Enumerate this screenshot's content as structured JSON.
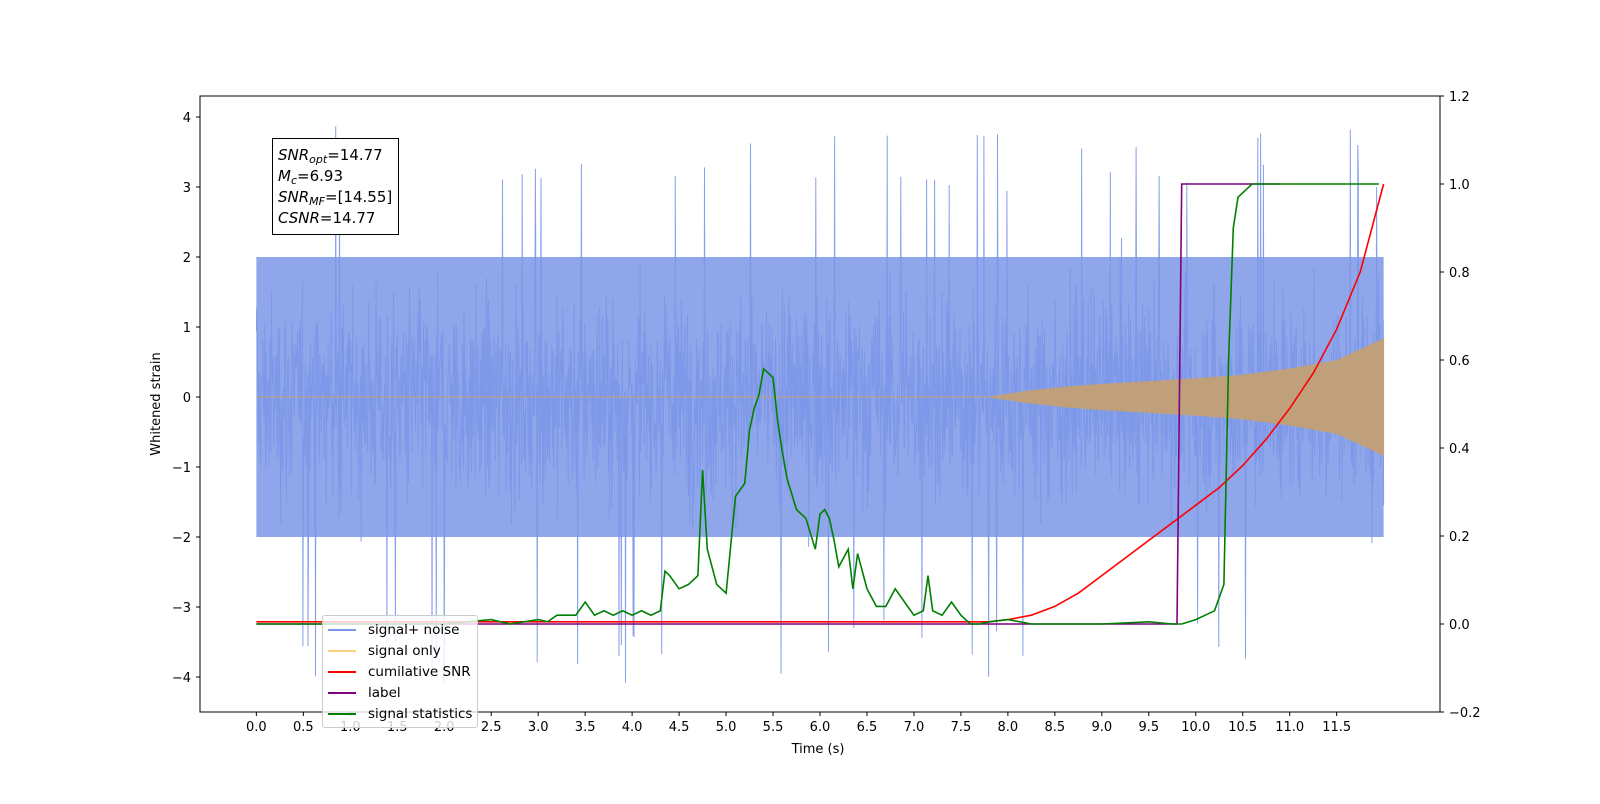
{
  "chart_data": {
    "type": "line",
    "xlabel": "Time (s)",
    "ylabel": "Whitened strain",
    "xlim": [
      -0.6,
      12.6
    ],
    "ylim": [
      -4.5,
      4.3
    ],
    "y2lim": [
      -0.2,
      1.2
    ],
    "x_ticks": [
      "0.0",
      "0.5",
      "1.0",
      "1.5",
      "2.0",
      "2.5",
      "3.0",
      "3.5",
      "4.0",
      "4.5",
      "5.0",
      "5.5",
      "6.0",
      "6.5",
      "7.0",
      "7.5",
      "8.0",
      "8.5",
      "9.0",
      "9.5",
      "10.0",
      "10.5",
      "11.0",
      "11.5"
    ],
    "y_ticks": [
      "4",
      "3",
      "2",
      "1",
      "0",
      "−1",
      "−2",
      "−3",
      "−4"
    ],
    "y2_ticks": [
      "1.2",
      "1.0",
      "0.8",
      "0.6",
      "0.4",
      "0.2",
      "0.0",
      "−0.2"
    ],
    "grid": false,
    "legend_position": "lower-left",
    "annotation": {
      "snr_opt": "=14.77",
      "mc": "=6.93",
      "snr_mf": "=[14.55]",
      "csnr": "=14.77"
    },
    "series": [
      {
        "name": "signal+ noise",
        "color": "#7b96e8",
        "axis": "left",
        "noise_band": [
          -2.0,
          2.0
        ],
        "peak_max": 3.9,
        "peak_min": -4.1
      },
      {
        "name": "signal only",
        "color": "#ffa64d",
        "axis": "left",
        "envelope": {
          "x": [
            0.0,
            7.8,
            8.2,
            8.6,
            9.0,
            9.5,
            10.0,
            10.5,
            11.0,
            11.5,
            12.0
          ],
          "amp": [
            0.0,
            0.0,
            0.08,
            0.14,
            0.18,
            0.22,
            0.26,
            0.31,
            0.4,
            0.52,
            0.83
          ]
        }
      },
      {
        "name": "cumilative SNR",
        "color": "#ff0000",
        "axis": "right",
        "x": [
          0.0,
          7.8,
          8.0,
          8.25,
          8.5,
          8.75,
          9.0,
          9.25,
          9.5,
          9.75,
          10.0,
          10.25,
          10.5,
          10.75,
          11.0,
          11.25,
          11.5,
          11.75,
          12.0
        ],
        "y": [
          0.005,
          0.005,
          0.01,
          0.02,
          0.04,
          0.07,
          0.11,
          0.15,
          0.19,
          0.23,
          0.27,
          0.31,
          0.36,
          0.42,
          0.49,
          0.57,
          0.67,
          0.8,
          1.0
        ]
      },
      {
        "name": "label",
        "color": "#800080",
        "axis": "right",
        "x": [
          0.0,
          9.8,
          9.85,
          10.9
        ],
        "y": [
          0.0,
          0.0,
          1.0,
          1.0
        ]
      },
      {
        "name": "signal statistics",
        "color": "#008000",
        "axis": "right",
        "x": [
          0.0,
          0.5,
          1.0,
          1.5,
          2.0,
          2.5,
          2.7,
          3.0,
          3.1,
          3.2,
          3.4,
          3.5,
          3.6,
          3.7,
          3.8,
          3.9,
          4.0,
          4.1,
          4.2,
          4.3,
          4.35,
          4.4,
          4.5,
          4.6,
          4.7,
          4.75,
          4.8,
          4.85,
          4.9,
          5.0,
          5.1,
          5.2,
          5.25,
          5.3,
          5.35,
          5.4,
          5.5,
          5.55,
          5.6,
          5.65,
          5.75,
          5.85,
          5.95,
          6.0,
          6.05,
          6.1,
          6.15,
          6.2,
          6.3,
          6.35,
          6.4,
          6.5,
          6.6,
          6.7,
          6.8,
          6.9,
          7.0,
          7.1,
          7.15,
          7.2,
          7.3,
          7.4,
          7.5,
          7.6,
          7.7,
          7.8,
          8.0,
          8.25,
          8.5,
          9.0,
          9.5,
          9.75,
          9.85,
          10.0,
          10.1,
          10.2,
          10.3,
          10.35,
          10.4,
          10.45,
          10.5,
          10.55,
          10.6,
          10.75,
          11.0,
          11.5,
          11.95
        ],
        "y": [
          0.0,
          0.0,
          0.0,
          0.0,
          0.0,
          0.01,
          0.0,
          0.01,
          0.005,
          0.02,
          0.02,
          0.05,
          0.02,
          0.03,
          0.02,
          0.03,
          0.02,
          0.03,
          0.02,
          0.03,
          0.12,
          0.11,
          0.08,
          0.09,
          0.11,
          0.35,
          0.17,
          0.13,
          0.09,
          0.07,
          0.29,
          0.32,
          0.44,
          0.49,
          0.52,
          0.58,
          0.56,
          0.46,
          0.39,
          0.33,
          0.26,
          0.24,
          0.17,
          0.25,
          0.26,
          0.24,
          0.19,
          0.13,
          0.17,
          0.08,
          0.16,
          0.08,
          0.04,
          0.04,
          0.08,
          0.05,
          0.02,
          0.03,
          0.11,
          0.03,
          0.02,
          0.05,
          0.02,
          0.0,
          0.0,
          0.005,
          0.01,
          0.0,
          0.0,
          0.0,
          0.005,
          0.0,
          0.0,
          0.01,
          0.02,
          0.03,
          0.09,
          0.6,
          0.9,
          0.97,
          0.98,
          0.99,
          1.0,
          1.0,
          1.0,
          1.0,
          1.0
        ]
      }
    ]
  }
}
